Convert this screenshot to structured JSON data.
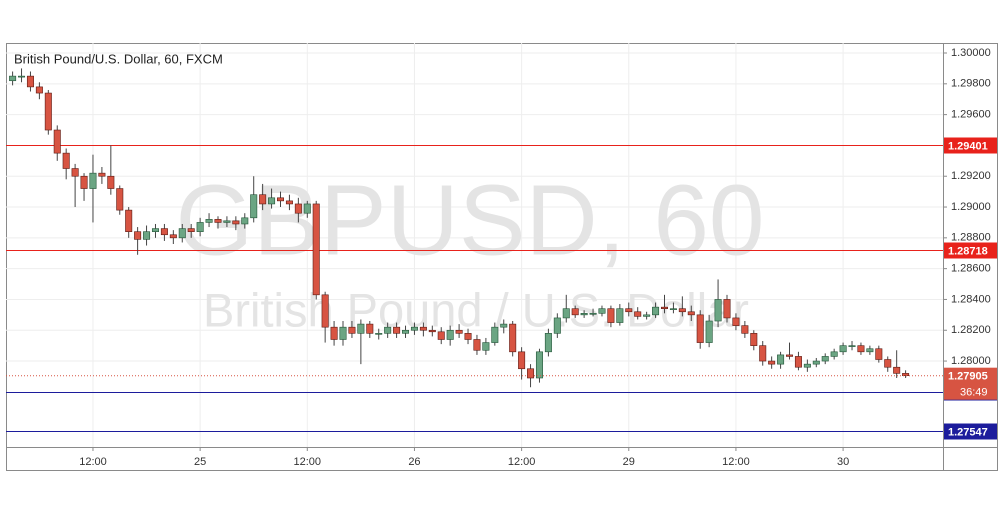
{
  "chart_data": {
    "type": "candlestick",
    "title": "British Pound/U.S. Dollar, 60, FXCM",
    "watermark": "GBPUSD, 60",
    "watermark_subtitle": "British Pound / U.S. Dollar",
    "categories": [
      null,
      null,
      null,
      null,
      null,
      null,
      null,
      null,
      null,
      "12:00",
      null,
      null,
      null,
      null,
      null,
      null,
      null,
      null,
      null,
      null,
      null,
      "25",
      null,
      null,
      null,
      null,
      null,
      null,
      null,
      null,
      null,
      null,
      null,
      "12:00",
      null,
      null,
      null,
      null,
      null,
      null,
      null,
      null,
      null,
      null,
      null,
      "26",
      null,
      null,
      null,
      null,
      null,
      null,
      null,
      null,
      null,
      null,
      null,
      "12:00",
      null,
      null,
      null,
      null,
      null,
      null,
      null,
      null,
      null,
      null,
      null,
      "29",
      null,
      null,
      null,
      null,
      null,
      null,
      null,
      null,
      null,
      null,
      null,
      "12:00",
      null,
      null,
      null,
      null,
      null,
      null,
      null,
      null,
      null,
      null,
      null,
      "30",
      null,
      null,
      null,
      null,
      null,
      null,
      null
    ],
    "open": [
      1.2982,
      1.2985,
      1.2985,
      1.2978,
      1.2974,
      1.295,
      1.2935,
      1.2925,
      1.292,
      1.2912,
      1.2922,
      1.292,
      1.2912,
      1.2898,
      1.2884,
      1.2879,
      1.2884,
      1.2886,
      1.2882,
      1.288,
      1.2886,
      1.2884,
      1.289,
      1.2892,
      1.289,
      1.2891,
      1.2889,
      1.2893,
      1.2908,
      1.2902,
      1.2906,
      1.2904,
      1.2902,
      1.2896,
      1.2902,
      1.2843,
      1.2822,
      1.2814,
      1.2822,
      1.2818,
      1.2824,
      1.2818,
      1.2818,
      1.2822,
      1.2818,
      1.282,
      1.2822,
      1.282,
      1.2819,
      1.2814,
      1.282,
      1.2818,
      1.2814,
      1.2807,
      1.2812,
      1.2822,
      1.2824,
      1.2806,
      1.2795,
      1.2789,
      1.2806,
      1.2818,
      1.2828,
      1.2834,
      1.283,
      1.2831,
      1.2831,
      1.2834,
      1.2825,
      1.2834,
      1.2832,
      1.2829,
      1.283,
      1.2835,
      1.2834,
      1.2834,
      1.2832,
      1.283,
      1.2812,
      1.2826,
      1.284,
      1.2828,
      1.2823,
      1.2818,
      1.281,
      1.28,
      1.2798,
      1.2804,
      1.2803,
      1.2796,
      1.2798,
      1.28,
      1.2803,
      1.2806,
      1.281,
      1.281,
      1.2806,
      1.2808,
      1.2801,
      1.2796,
      1.2792
    ],
    "high": [
      1.2988,
      1.299,
      1.2988,
      1.2981,
      1.2976,
      1.2953,
      1.2938,
      1.2928,
      1.2922,
      1.2934,
      1.2926,
      1.294,
      1.2914,
      1.29,
      1.2887,
      1.2888,
      1.2889,
      1.2889,
      1.2885,
      1.2889,
      1.2889,
      1.2893,
      1.2896,
      1.2894,
      1.2894,
      1.2894,
      1.2896,
      1.292,
      1.2915,
      1.2912,
      1.291,
      1.2908,
      1.2906,
      1.2904,
      1.2904,
      1.2845,
      1.2826,
      1.2826,
      1.2826,
      1.2827,
      1.2826,
      1.2821,
      1.2825,
      1.2825,
      1.2823,
      1.2825,
      1.2825,
      1.2823,
      1.2822,
      1.2823,
      1.2824,
      1.2821,
      1.2817,
      1.2815,
      1.2825,
      1.2827,
      1.2826,
      1.2809,
      1.2798,
      1.2808,
      1.2821,
      1.2831,
      1.2843,
      1.2836,
      1.2833,
      1.2834,
      1.2836,
      1.2836,
      1.2837,
      1.2838,
      1.2835,
      1.2832,
      1.2838,
      1.2843,
      1.2838,
      1.2842,
      1.2836,
      1.2833,
      1.283,
      1.2853,
      1.2843,
      1.2831,
      1.2826,
      1.282,
      1.2813,
      1.2803,
      1.2806,
      1.2812,
      1.2806,
      1.2801,
      1.2802,
      1.2805,
      1.2808,
      1.2812,
      1.2813,
      1.2812,
      1.281,
      1.281,
      1.2803,
      1.2807,
      1.2794
    ],
    "low": [
      1.2979,
      1.2981,
      1.2975,
      1.297,
      1.2947,
      1.293,
      1.2918,
      1.29,
      1.2904,
      1.289,
      1.2915,
      1.2908,
      1.2895,
      1.288,
      1.2869,
      1.2875,
      1.288,
      1.2878,
      1.2876,
      1.2877,
      1.288,
      1.2881,
      1.2887,
      1.2886,
      1.2887,
      1.2885,
      1.2886,
      1.289,
      1.2898,
      1.2899,
      1.29,
      1.2898,
      1.289,
      1.2893,
      1.284,
      1.2812,
      1.281,
      1.281,
      1.2815,
      1.2798,
      1.2815,
      1.2814,
      1.2815,
      1.2815,
      1.2815,
      1.2817,
      1.2816,
      1.2816,
      1.2811,
      1.281,
      1.2815,
      1.2811,
      1.2804,
      1.2804,
      1.281,
      1.2818,
      1.2803,
      1.2788,
      1.2783,
      1.2786,
      1.2803,
      1.2815,
      1.2825,
      1.2828,
      1.2828,
      1.2829,
      1.2829,
      1.2822,
      1.2823,
      1.2829,
      1.2827,
      1.2827,
      1.2828,
      1.2831,
      1.2831,
      1.2829,
      1.2826,
      1.2808,
      1.2809,
      1.2822,
      1.2825,
      1.282,
      1.2815,
      1.2807,
      1.2797,
      1.2795,
      1.2795,
      1.2801,
      1.2794,
      1.2793,
      1.2796,
      1.2798,
      1.2801,
      1.2804,
      1.2807,
      1.2804,
      1.2804,
      1.2799,
      1.2793,
      1.2789,
      1.2789
    ],
    "close": [
      1.2985,
      1.2985,
      1.2978,
      1.2974,
      1.295,
      1.2935,
      1.2925,
      1.292,
      1.2912,
      1.2922,
      1.292,
      1.2912,
      1.2898,
      1.2884,
      1.2879,
      1.2884,
      1.2886,
      1.2882,
      1.288,
      1.2886,
      1.2884,
      1.289,
      1.2892,
      1.289,
      1.2891,
      1.2889,
      1.2893,
      1.2908,
      1.2902,
      1.2906,
      1.2904,
      1.2902,
      1.2896,
      1.2902,
      1.2843,
      1.2822,
      1.2814,
      1.2822,
      1.2818,
      1.2824,
      1.2818,
      1.2818,
      1.2822,
      1.2818,
      1.282,
      1.2822,
      1.282,
      1.2819,
      1.2814,
      1.282,
      1.2818,
      1.2814,
      1.2807,
      1.2812,
      1.2822,
      1.2824,
      1.2806,
      1.2795,
      1.2789,
      1.2806,
      1.2818,
      1.2828,
      1.2834,
      1.283,
      1.2831,
      1.2831,
      1.2834,
      1.2825,
      1.2834,
      1.2832,
      1.2829,
      1.283,
      1.2835,
      1.2834,
      1.2834,
      1.2832,
      1.283,
      1.2812,
      1.2826,
      1.284,
      1.2828,
      1.2823,
      1.2818,
      1.281,
      1.28,
      1.2798,
      1.2804,
      1.2803,
      1.2796,
      1.2798,
      1.28,
      1.2803,
      1.2806,
      1.281,
      1.281,
      1.2806,
      1.2808,
      1.2801,
      1.2796,
      1.2792,
      1.27905
    ],
    "up_color": "#6ba583",
    "down_color": "#d75442",
    "ylim": [
      1.27442,
      1.30065
    ],
    "yticks": [
      {
        "value": 1.3,
        "label": "1.30000"
      },
      {
        "value": 1.298,
        "label": "1.29800"
      },
      {
        "value": 1.296,
        "label": "1.29600"
      },
      {
        "value": 1.292,
        "label": "1.29200"
      },
      {
        "value": 1.29,
        "label": "1.29000"
      },
      {
        "value": 1.288,
        "label": "1.28800"
      },
      {
        "value": 1.286,
        "label": "1.28600"
      },
      {
        "value": 1.284,
        "label": "1.28400"
      },
      {
        "value": 1.282,
        "label": "1.28200"
      },
      {
        "value": 1.28,
        "label": "1.28000"
      }
    ],
    "grid": true,
    "levels": [
      {
        "value": 1.29401,
        "color": "#e8221b"
      },
      {
        "value": 1.28718,
        "color": "#e8221b"
      },
      {
        "value": 1.27798,
        "color": "#1c1c9c"
      },
      {
        "value": 1.27547,
        "color": "#1c1c9c"
      }
    ],
    "countdown": "36:49"
  }
}
